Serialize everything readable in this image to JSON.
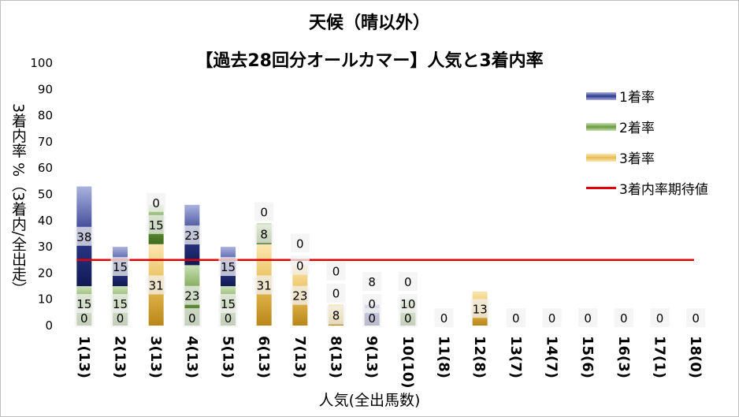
{
  "chart_data": {
    "type": "bar",
    "stacked": true,
    "title": "天候（晴以外）",
    "subtitle": "【過去28回分オールカマー】人気と3着内率",
    "xlabel": "人気(全出馬数)",
    "ylabel": "3着内率 %（3着内/全出走）",
    "ylim": [
      0,
      100
    ],
    "yticks": [
      0,
      10,
      20,
      30,
      40,
      50,
      60,
      70,
      80,
      90,
      100
    ],
    "categories": [
      "1(13)",
      "2(13)",
      "3(13)",
      "4(13)",
      "5(13)",
      "6(13)",
      "7(13)",
      "8(13)",
      "9(13)",
      "10(10)",
      "11(8)",
      "12(8)",
      "13(7)",
      "14(7)",
      "15(6)",
      "16(3)",
      "17(1)",
      "18(0)"
    ],
    "series": [
      {
        "name": "3着率",
        "color": "#d6a43a",
        "values": [
          0,
          0,
          31,
          0,
          0,
          31,
          23,
          8,
          0,
          0,
          0,
          13,
          0,
          0,
          0,
          0,
          0,
          0
        ]
      },
      {
        "name": "2着率",
        "color": "#6a9a3e",
        "values": [
          15,
          15,
          15,
          23,
          15,
          8,
          0,
          0,
          0,
          10,
          0,
          0,
          0,
          0,
          0,
          0,
          0,
          0
        ]
      },
      {
        "name": "1着率",
        "color": "#2e3a8c",
        "values": [
          38,
          15,
          0,
          23,
          15,
          0,
          0,
          0,
          8,
          0,
          0,
          0,
          0,
          0,
          0,
          0,
          0,
          0
        ]
      }
    ],
    "reference_line": {
      "name": "3着内率期待値",
      "color": "#e00000",
      "value": 25
    },
    "legend": "right",
    "legend_order": [
      "1着率",
      "2着率",
      "3着率",
      "3着内率期待値"
    ]
  }
}
